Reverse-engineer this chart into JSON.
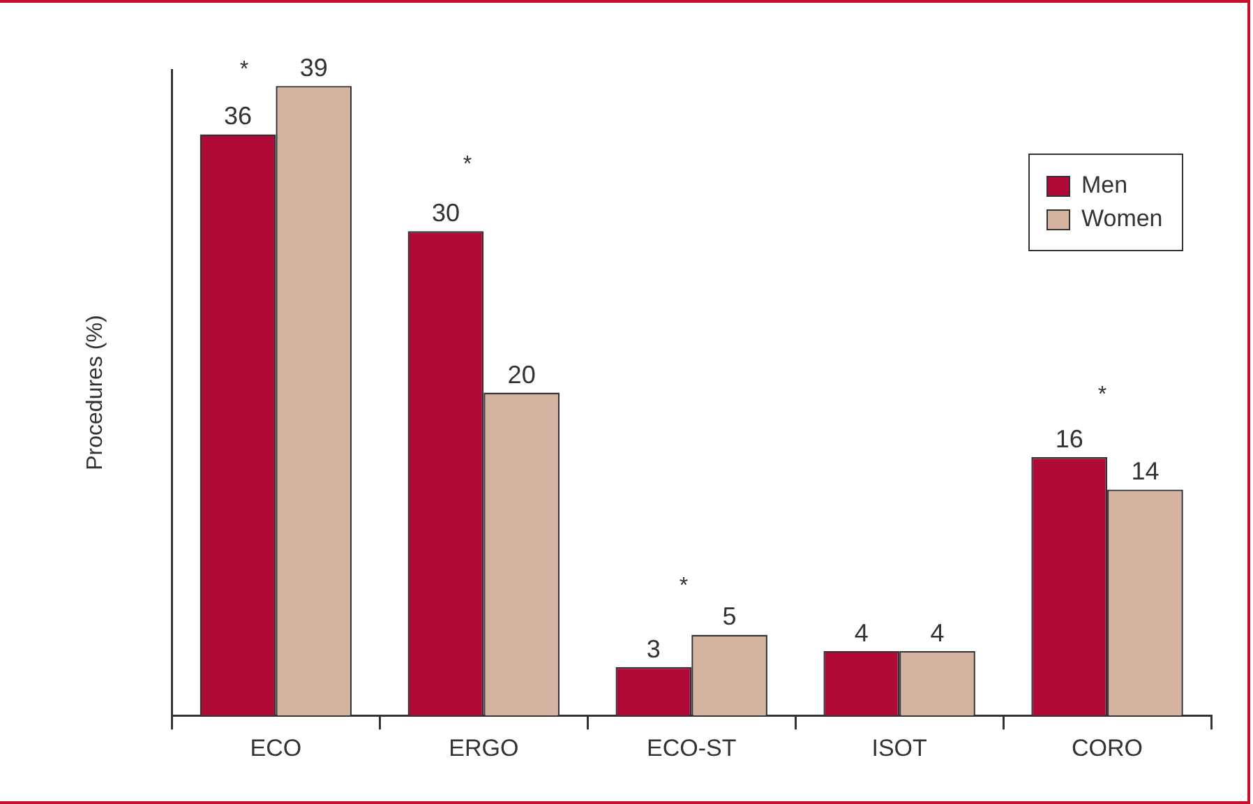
{
  "chart_data": {
    "type": "bar",
    "ylabel": "Procedures (%)",
    "categories": [
      "ECO",
      "ERGO",
      "ECO-ST",
      "ISOT",
      "CORO"
    ],
    "series": [
      {
        "name": "Men",
        "color": "#b00936",
        "values": [
          36,
          30,
          3,
          4,
          16
        ]
      },
      {
        "name": "Women",
        "color": "#d4b3a0",
        "values": [
          39,
          20,
          5,
          4,
          14
        ]
      }
    ],
    "data_labels": true,
    "legend": "top right",
    "grid": false,
    "annotations": [
      "*",
      "*",
      "*",
      "*"
    ]
  }
}
